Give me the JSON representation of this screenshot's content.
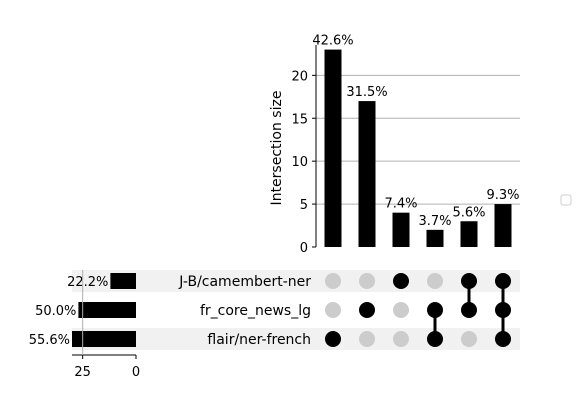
{
  "chart_data": {
    "type": "upset",
    "sets": [
      "J-B/camembert-ner",
      "fr_core_news_lg",
      "flair/ner-french"
    ],
    "set_size_labels": [
      "22.2%",
      "50.0%",
      "55.6%"
    ],
    "set_sizes": [
      12,
      27,
      30
    ],
    "set_size_axis": {
      "ticks": [
        25,
        0
      ],
      "xlim": [
        30,
        0
      ]
    },
    "intersections": [
      {
        "members": [
          2
        ],
        "value": 23,
        "label": "42.6%"
      },
      {
        "members": [
          1
        ],
        "value": 17,
        "label": "31.5%"
      },
      {
        "members": [
          0
        ],
        "value": 4,
        "label": "7.4%"
      },
      {
        "members": [
          1,
          2
        ],
        "value": 2,
        "label": "3.7%"
      },
      {
        "members": [
          0,
          1
        ],
        "value": 3,
        "label": "5.6%"
      },
      {
        "members": [
          0,
          1,
          2
        ],
        "value": 5,
        "label": "9.3%"
      }
    ],
    "ylabel": "Intersection size",
    "yticks": [
      0,
      5,
      10,
      15,
      20
    ],
    "ylim": [
      0,
      24
    ],
    "grid": true,
    "legend": "right"
  }
}
